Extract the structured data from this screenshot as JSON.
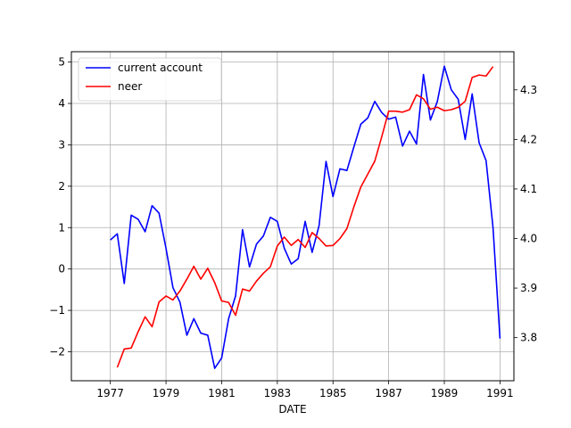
{
  "chart_data": {
    "type": "line",
    "xlabel": "DATE",
    "x_ticks": [
      "1977",
      "1979",
      "1981",
      "1983",
      "1985",
      "1987",
      "1989",
      "1991"
    ],
    "x_tick_values": [
      1977,
      1979,
      1981,
      1983,
      1985,
      1987,
      1989,
      1991
    ],
    "xlim": [
      1975.6,
      1991.5
    ],
    "y_left": {
      "ticks": [
        "−2",
        "−1",
        "0",
        "1",
        "2",
        "3",
        "4",
        "5"
      ],
      "tick_values": [
        -2,
        -1,
        0,
        1,
        2,
        3,
        4,
        5
      ],
      "ylim": [
        -2.7,
        5.25
      ]
    },
    "y_right": {
      "ticks": [
        "3.8",
        "3.9",
        "4.0",
        "4.1",
        "4.2",
        "4.3"
      ],
      "tick_values": [
        3.8,
        3.9,
        4.0,
        4.1,
        4.2,
        4.3
      ],
      "ylim": [
        3.713,
        4.377
      ]
    },
    "grid": true,
    "legend": "upper left",
    "series": [
      {
        "name": "current account",
        "axis": "left",
        "color": "#0000ff",
        "x": [
          1977.0,
          1977.25,
          1977.5,
          1977.75,
          1978.0,
          1978.25,
          1978.5,
          1978.75,
          1979.0,
          1979.25,
          1979.5,
          1979.75,
          1980.0,
          1980.25,
          1980.5,
          1980.75,
          1981.0,
          1981.25,
          1981.5,
          1981.75,
          1982.0,
          1982.25,
          1982.5,
          1982.75,
          1983.0,
          1983.25,
          1983.5,
          1983.75,
          1984.0,
          1984.25,
          1984.5,
          1984.75,
          1985.0,
          1985.25,
          1985.5,
          1985.75,
          1986.0,
          1986.25,
          1986.5,
          1986.75,
          1987.0,
          1987.25,
          1987.5,
          1987.75,
          1988.0,
          1988.25,
          1988.5,
          1988.75,
          1989.0,
          1989.25,
          1989.5,
          1989.75,
          1990.0,
          1990.25,
          1990.5,
          1990.75,
          1991.0
        ],
        "y": [
          0.7,
          0.85,
          -0.35,
          1.3,
          1.2,
          0.9,
          1.53,
          1.35,
          0.5,
          -0.45,
          -0.8,
          -1.6,
          -1.2,
          -1.55,
          -1.6,
          -2.4,
          -2.15,
          -1.2,
          -0.65,
          0.95,
          0.05,
          0.6,
          0.8,
          1.25,
          1.15,
          0.5,
          0.12,
          0.25,
          1.15,
          0.4,
          1.05,
          2.6,
          1.75,
          2.42,
          2.38,
          2.95,
          3.5,
          3.65,
          4.05,
          3.78,
          3.62,
          3.67,
          2.97,
          3.33,
          3.02,
          4.7,
          3.6,
          4.05,
          4.9,
          4.33,
          4.1,
          3.13,
          4.23,
          3.05,
          2.62,
          1.0,
          -1.68
        ]
      },
      {
        "name": "neer",
        "axis": "right",
        "color": "#ff0000",
        "x": [
          1977.25,
          1977.5,
          1977.75,
          1978.0,
          1978.25,
          1978.5,
          1978.75,
          1979.0,
          1979.25,
          1979.5,
          1979.75,
          1980.0,
          1980.25,
          1980.5,
          1980.75,
          1981.0,
          1981.25,
          1981.5,
          1981.75,
          1982.0,
          1982.25,
          1982.5,
          1982.75,
          1983.0,
          1983.25,
          1983.5,
          1983.75,
          1984.0,
          1984.25,
          1984.5,
          1984.75,
          1985.0,
          1985.25,
          1985.5,
          1985.75,
          1986.0,
          1986.25,
          1986.5,
          1986.75,
          1987.0,
          1987.25,
          1987.5,
          1987.75,
          1988.0,
          1988.25,
          1988.5,
          1988.75,
          1989.0,
          1989.25,
          1989.5,
          1989.75,
          1990.0,
          1990.25,
          1990.5,
          1990.75
        ],
        "y": [
          3.74,
          3.777,
          3.779,
          3.812,
          3.842,
          3.822,
          3.872,
          3.884,
          3.876,
          3.894,
          3.918,
          3.944,
          3.918,
          3.94,
          3.911,
          3.874,
          3.871,
          3.845,
          3.898,
          3.894,
          3.914,
          3.93,
          3.943,
          3.985,
          4.003,
          3.986,
          3.998,
          3.982,
          4.012,
          4.0,
          3.985,
          3.986,
          4.0,
          4.02,
          4.064,
          4.104,
          4.13,
          4.156,
          4.205,
          4.257,
          4.257,
          4.255,
          4.26,
          4.29,
          4.282,
          4.261,
          4.265,
          4.258,
          4.26,
          4.265,
          4.277,
          4.325,
          4.33,
          4.328,
          4.347
        ]
      }
    ]
  }
}
